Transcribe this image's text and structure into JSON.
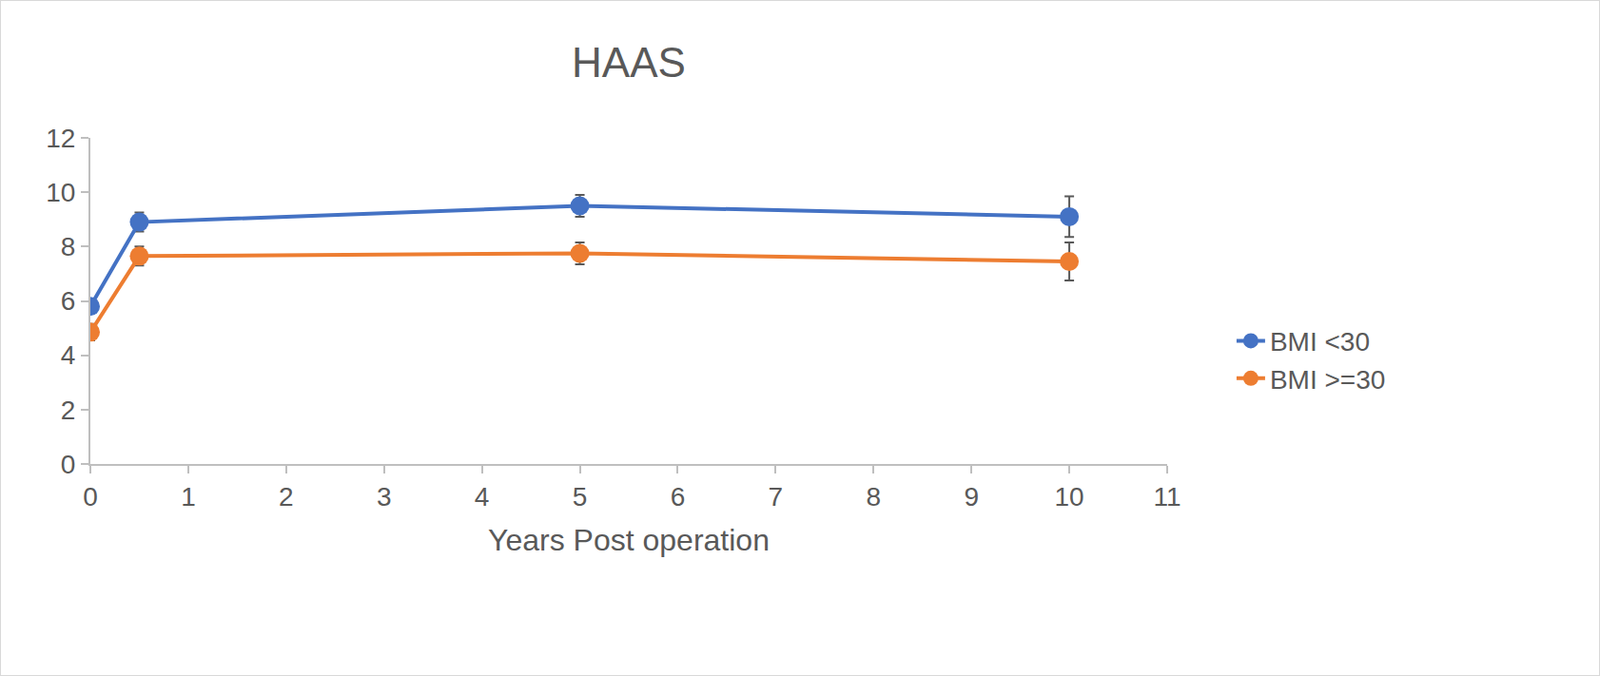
{
  "chart_data": {
    "type": "line",
    "title": "HAAS",
    "x_label": "Years Post operation",
    "x": [
      0,
      0.5,
      5,
      10
    ],
    "series": [
      {
        "name": "BMI <30",
        "color": "#4472c4",
        "marker": "circle",
        "line_style": "solid",
        "values": [
          5.8,
          8.9,
          9.5,
          9.1
        ],
        "errors": [
          0.25,
          0.35,
          0.4,
          0.75
        ]
      },
      {
        "name": "BMI >=30",
        "color": "#ed7d31",
        "marker": "circle",
        "line_style": "solid",
        "values": [
          4.85,
          7.65,
          7.75,
          7.45
        ],
        "errors": [
          0.3,
          0.35,
          0.4,
          0.7
        ]
      }
    ],
    "xlim": [
      0,
      11
    ],
    "xticks": [
      0,
      1,
      2,
      3,
      4,
      5,
      6,
      7,
      8,
      9,
      10,
      11
    ],
    "ylim": [
      0,
      12
    ],
    "yticks": [
      0,
      2,
      4,
      6,
      8,
      10,
      12
    ],
    "grid": false,
    "legend": "right"
  }
}
